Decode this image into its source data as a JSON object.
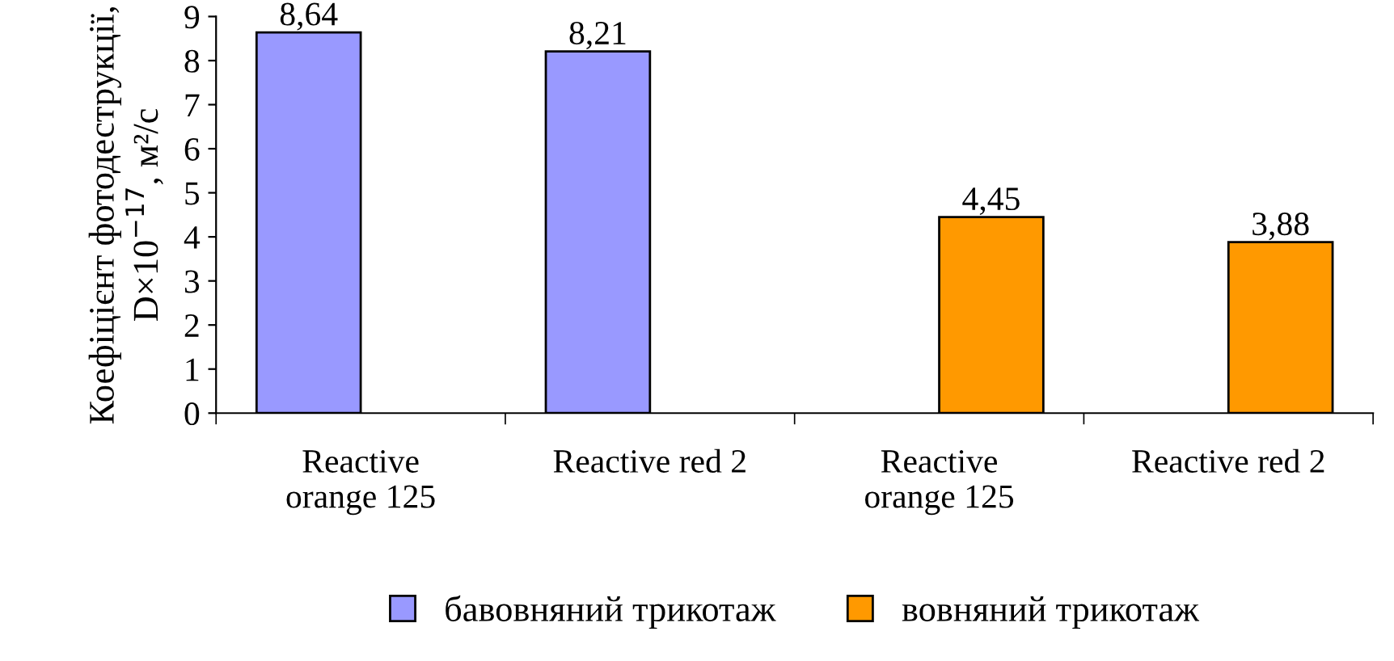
{
  "chart_data": {
    "type": "bar",
    "categories": [
      "Reactive\norange 125",
      "Reactive red 2",
      "Reactive\norange 125",
      "Reactive red 2"
    ],
    "ylabel": "Коефіцієнт фотодеструкції,\nD×10$^{−17}$, м²/с",
    "series": [
      {
        "name": "бавовняний трикотаж",
        "color": "#9999ff",
        "values": [
          8.64,
          8.21,
          null,
          null
        ],
        "value_labels": [
          "8,64",
          "8,21",
          null,
          null
        ]
      },
      {
        "name": "вовняний трикотаж",
        "color": "#ff9900",
        "values": [
          null,
          null,
          4.45,
          3.88
        ],
        "value_labels": [
          null,
          null,
          "4,45",
          "3,88"
        ]
      }
    ],
    "ylim": [
      0,
      9
    ],
    "yticks": [
      0,
      1,
      2,
      3,
      4,
      5,
      6,
      7,
      8,
      9
    ],
    "grid": false,
    "legend": "bottom"
  }
}
